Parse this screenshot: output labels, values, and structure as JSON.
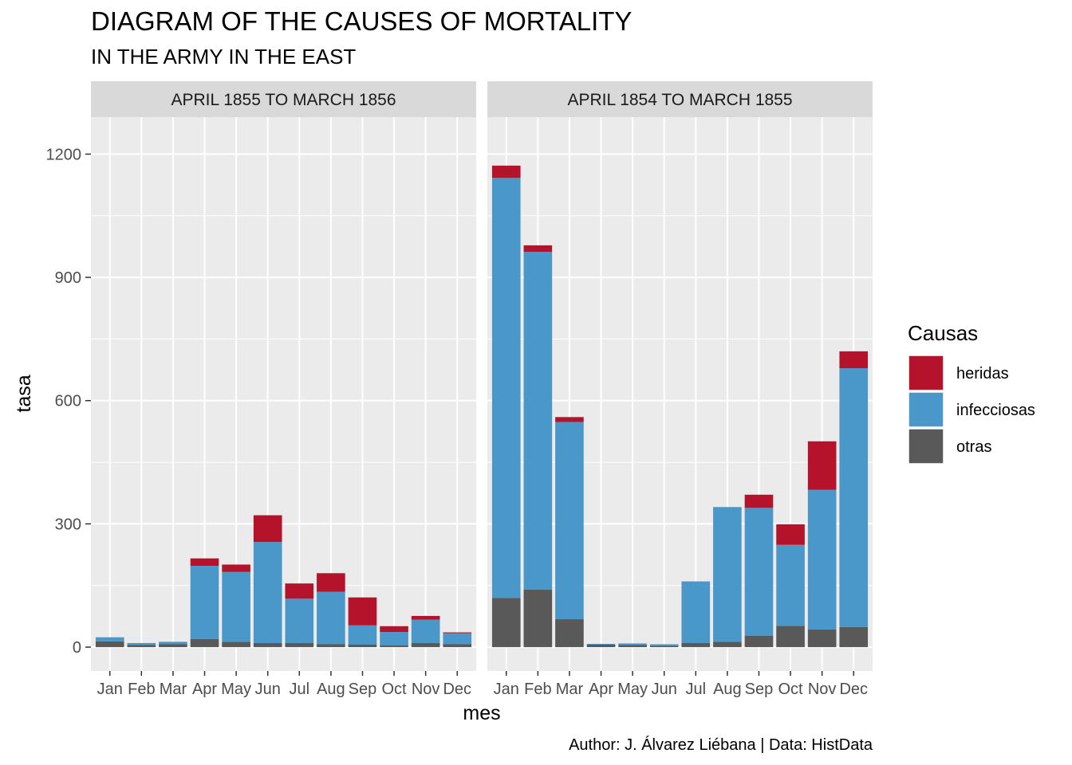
{
  "title": "DIAGRAM OF THE CAUSES OF MORTALITY",
  "subtitle": "IN THE ARMY IN THE EAST",
  "caption": "Author: J. Álvarez Liébana | Data: HistData",
  "xlabel": "mes",
  "ylabel": "tasa",
  "legend": {
    "title": "Causas",
    "position": "right",
    "items": [
      {
        "label": "heridas",
        "color": "#B5132B"
      },
      {
        "label": "infecciosas",
        "color": "#4A97C9"
      },
      {
        "label": "otras",
        "color": "#595959"
      }
    ]
  },
  "y_ticks": [
    "0",
    "300",
    "600",
    "900",
    "1200"
  ],
  "chart_data": {
    "type": "bar",
    "stacked": true,
    "grid": true,
    "ylim": [
      -58,
      1290
    ],
    "y_ticks": [
      0,
      300,
      600,
      900,
      1200
    ],
    "categories": [
      "Jan",
      "Feb",
      "Mar",
      "Apr",
      "May",
      "Jun",
      "Jul",
      "Aug",
      "Sep",
      "Oct",
      "Nov",
      "Dec"
    ],
    "series_order": [
      "otras",
      "infecciosas",
      "heridas"
    ],
    "series_colors": {
      "heridas": "#B5132B",
      "infecciosas": "#4A97C9",
      "otras": "#595959"
    },
    "panels": [
      {
        "label": "APRIL 1855 TO MARCH 1856",
        "series": [
          {
            "name": "otras",
            "values": [
              14,
              5,
              7,
              20,
              13,
              10,
              10,
              7,
              6,
              4,
              10,
              7
            ]
          },
          {
            "name": "infecciosas",
            "values": [
              10,
              5,
              6,
              178,
              170,
              246,
              108,
              128,
              47,
              33,
              57,
              27
            ]
          },
          {
            "name": "heridas",
            "values": [
              0,
              0,
              0,
              18,
              18,
              65,
              37,
              45,
              68,
              14,
              9,
              2
            ]
          }
        ]
      },
      {
        "label": "APRIL 1854 TO MARCH 1855",
        "series": [
          {
            "name": "otras",
            "values": [
              120,
              140,
              68,
              6,
              5,
              3,
              10,
              13,
              28,
              52,
              43,
              49
            ]
          },
          {
            "name": "infecciosas",
            "values": [
              1022,
              822,
              480,
              2,
              4,
              4,
              150,
              328,
              311,
              197,
              340,
              630
            ]
          },
          {
            "name": "heridas",
            "values": [
              30,
              16,
              12,
              0,
              0,
              0,
              0,
              0,
              32,
              50,
              118,
              41
            ]
          }
        ]
      }
    ]
  }
}
